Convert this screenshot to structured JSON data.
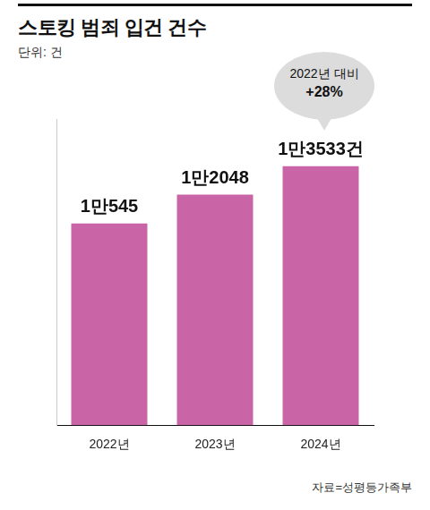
{
  "chart_data": {
    "type": "bar",
    "title": "스토킹 범죄 입건 건수",
    "subtitle": "단위: 건",
    "annotation": [
      "2022년 대비",
      "+28%"
    ],
    "source": "자료=성평등가족부",
    "categories": [
      "2022년",
      "2023년",
      "2024년"
    ],
    "values": [
      10545,
      12048,
      13533
    ],
    "value_labels": [
      "1만545",
      "1만2048",
      "1만3533건"
    ],
    "color": "#c964a6",
    "ylim": [
      0,
      16000
    ],
    "grid": false,
    "data_labels": true,
    "tick_labels": "x"
  }
}
